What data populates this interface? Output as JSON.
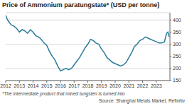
{
  "chart_data": {
    "type": "line",
    "title": "Price of Ammonium paratungstate* (USD per tonne)",
    "footnote": "*The intermediate product that mined tungsten is turned into",
    "source": "Source: Shanghai Metals Market, Refinitiv",
    "x": [
      2012.0,
      2012.1,
      2012.2,
      2012.4,
      2012.6,
      2012.8,
      2013.0,
      2013.2,
      2013.4,
      2013.6,
      2013.8,
      2014.0,
      2014.2,
      2014.4,
      2014.6,
      2014.8,
      2015.0,
      2015.2,
      2015.4,
      2015.6,
      2015.8,
      2016.0,
      2016.2,
      2016.4,
      2016.6,
      2016.8,
      2017.0,
      2017.2,
      2017.4,
      2017.6,
      2017.8,
      2018.0,
      2018.2,
      2018.4,
      2018.6,
      2018.8,
      2019.0,
      2019.2,
      2019.4,
      2019.6,
      2019.8,
      2020.0,
      2020.2,
      2020.4,
      2020.6,
      2020.8,
      2021.0,
      2021.2,
      2021.4,
      2021.6,
      2021.8,
      2022.0,
      2022.2,
      2022.4,
      2022.6,
      2022.8,
      2023.0,
      2023.2,
      2023.4,
      2023.6,
      2023.75,
      2023.85,
      2023.95
    ],
    "series": [
      {
        "name": "Price",
        "color": "#2a7a9c",
        "values": [
          420,
          405,
          395,
          380,
          375,
          365,
          350,
          360,
          355,
          345,
          360,
          350,
          335,
          330,
          320,
          305,
          295,
          270,
          250,
          235,
          210,
          190,
          195,
          200,
          195,
          200,
          215,
          230,
          245,
          265,
          285,
          300,
          320,
          315,
          305,
          300,
          280,
          265,
          245,
          235,
          225,
          220,
          215,
          210,
          215,
          225,
          245,
          265,
          290,
          300,
          315,
          320,
          330,
          325,
          320,
          315,
          310,
          305,
          305,
          310,
          345,
          350,
          330
        ]
      }
    ],
    "xlim": [
      2012,
      2024
    ],
    "xticks": [
      2012,
      2013,
      2014,
      2015,
      2016,
      2017,
      2018,
      2019,
      2020,
      2021,
      2022,
      2023
    ],
    "ylim": [
      150,
      430
    ],
    "yticks": [
      150,
      200,
      250,
      300,
      350,
      400
    ],
    "grid": true
  }
}
